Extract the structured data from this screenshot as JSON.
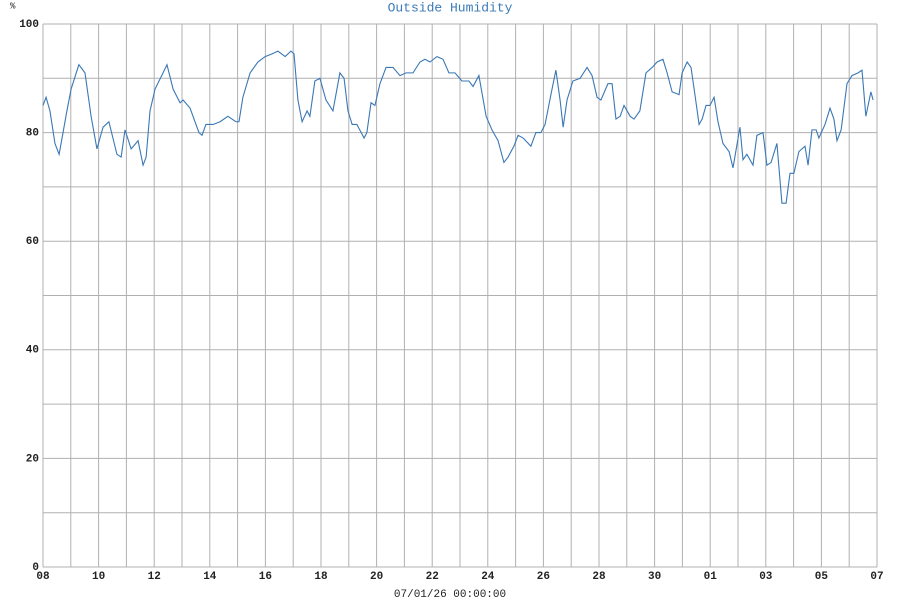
{
  "chart_data": {
    "type": "line",
    "title": "Outside Humidity",
    "ylabel": "%",
    "xlabel": "07/01/26 00:00:00",
    "xlim": [
      0,
      30
    ],
    "ylim": [
      0,
      100
    ],
    "xticks": [
      {
        "value": 0,
        "label": "08"
      },
      {
        "value": 2,
        "label": "10"
      },
      {
        "value": 4,
        "label": "12"
      },
      {
        "value": 6,
        "label": "14"
      },
      {
        "value": 8,
        "label": "16"
      },
      {
        "value": 10,
        "label": "18"
      },
      {
        "value": 12,
        "label": "20"
      },
      {
        "value": 14,
        "label": "22"
      },
      {
        "value": 16,
        "label": "24"
      },
      {
        "value": 18,
        "label": "26"
      },
      {
        "value": 20,
        "label": "28"
      },
      {
        "value": 22,
        "label": "30"
      },
      {
        "value": 24,
        "label": "01"
      },
      {
        "value": 26,
        "label": "03"
      },
      {
        "value": 28,
        "label": "05"
      },
      {
        "value": 30,
        "label": "07"
      }
    ],
    "xminor": [
      1,
      3,
      5,
      7,
      9,
      11,
      13,
      15,
      17,
      19,
      21,
      23,
      25,
      27,
      29
    ],
    "yticks": [
      0,
      20,
      40,
      60,
      80,
      100
    ],
    "yminor": [
      10,
      30,
      50,
      70,
      90
    ],
    "grid": true,
    "title_color": "#3a7ab8",
    "series": [
      {
        "name": "Outside Humidity",
        "color": "#3a78b5",
        "x": [
          0,
          0.11,
          0.25,
          0.43,
          0.58,
          0.72,
          0.86,
          1.01,
          1.29,
          1.51,
          1.73,
          1.94,
          2.16,
          2.37,
          2.66,
          2.81,
          2.95,
          3.17,
          3.42,
          3.6,
          3.71,
          3.85,
          4.03,
          4.46,
          4.68,
          4.93,
          5.04,
          5.29,
          5.61,
          5.72,
          5.86,
          6.12,
          6.37,
          6.65,
          6.94,
          7.05,
          7.19,
          7.45,
          7.73,
          7.99,
          8.24,
          8.45,
          8.71,
          8.92,
          9.03,
          9.17,
          9.32,
          9.5,
          9.6,
          9.78,
          9.96,
          10.18,
          10.43,
          10.68,
          10.83,
          10.97,
          11.12,
          11.29,
          11.55,
          11.65,
          11.8,
          11.94,
          12.12,
          12.34,
          12.59,
          12.84,
          13.06,
          13.31,
          13.56,
          13.74,
          13.92,
          14.17,
          14.39,
          14.6,
          14.82,
          15.07,
          15.32,
          15.47,
          15.68,
          15.94,
          16.15,
          16.37,
          16.58,
          16.73,
          16.94,
          17.09,
          17.27,
          17.55,
          17.73,
          17.91,
          18.06,
          18.27,
          18.45,
          18.6,
          18.71,
          18.85,
          19.06,
          19.32,
          19.57,
          19.75,
          19.93,
          20.07,
          20.32,
          20.47,
          20.61,
          20.76,
          20.9,
          21.12,
          21.26,
          21.47,
          21.69,
          21.91,
          22.09,
          22.3,
          22.45,
          22.63,
          22.88,
          22.99,
          23.17,
          23.31,
          23.45,
          23.6,
          23.71,
          23.85,
          23.99,
          24.14,
          24.28,
          24.46,
          24.68,
          24.82,
          25.07,
          25.18,
          25.32,
          25.54,
          25.68,
          25.9,
          26.04,
          26.19,
          26.4,
          26.58,
          26.73,
          26.87,
          27.01,
          27.19,
          27.41,
          27.52,
          27.66,
          27.81,
          27.91,
          28.13,
          28.31,
          28.45,
          28.56,
          28.71,
          28.92,
          29.1,
          29.32,
          29.46,
          29.6,
          29.78,
          29.86
        ],
        "values": [
          85,
          86.5,
          84,
          78,
          76,
          80,
          84,
          88,
          92.5,
          91,
          83,
          77,
          81,
          82,
          76,
          75.5,
          80.5,
          77,
          78.5,
          74,
          75.5,
          84,
          88,
          92.5,
          88,
          85.5,
          86,
          84.5,
          80,
          79.5,
          81.5,
          81.5,
          82,
          83,
          82,
          82,
          86.5,
          91,
          93,
          94,
          94.5,
          95,
          94,
          95,
          94.5,
          86,
          82,
          84,
          83,
          89.5,
          90,
          86,
          84,
          91,
          90,
          84,
          81.5,
          81.5,
          79,
          80,
          85.5,
          85,
          89,
          92,
          92,
          90.5,
          91,
          91,
          93,
          93.5,
          93,
          94,
          93.5,
          91,
          91,
          89.5,
          89.5,
          88.5,
          90.5,
          83,
          80.5,
          78.5,
          74.5,
          75.5,
          77.5,
          79.5,
          79,
          77.5,
          80,
          80,
          81.5,
          87,
          91.5,
          86,
          81,
          86,
          89.5,
          90,
          92,
          90.5,
          86.5,
          86,
          89,
          89,
          82.5,
          83,
          85,
          83,
          82.5,
          84,
          91,
          92,
          93,
          93.5,
          91,
          87.5,
          87,
          91,
          93,
          92,
          87,
          81.5,
          82.5,
          85,
          85,
          86.5,
          82,
          78,
          76.5,
          73.5,
          81,
          75,
          76,
          74,
          79.5,
          80,
          74,
          74.5,
          78,
          67,
          67,
          72.5,
          72.5,
          76.5,
          77.5,
          74,
          80.5,
          80.5,
          79,
          81.5,
          84.5,
          82.5,
          78.5,
          80.5,
          89,
          90.5,
          91,
          91.5,
          83,
          87.5,
          86
        ]
      }
    ]
  }
}
